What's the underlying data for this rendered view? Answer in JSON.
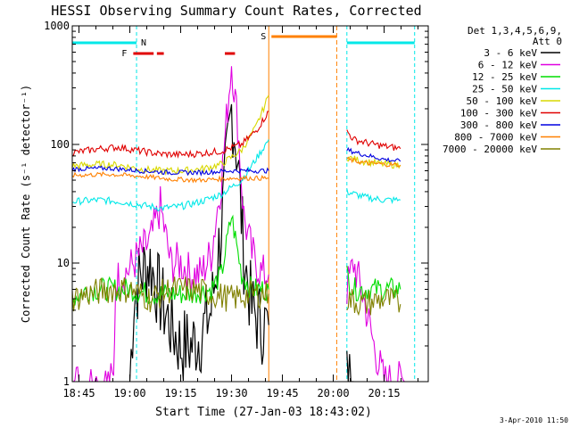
{
  "chart_data": {
    "type": "line",
    "title": "HESSI Observing Summary Count Rates, Corrected",
    "xlabel": "Start Time (27-Jan-03 18:43:02)",
    "ylabel": "Corrected Count Rate (s⁻¹ detector⁻¹)",
    "timestamp": "3-Apr-2010 11:50",
    "yscale": "log",
    "ylim": [
      1,
      1000
    ],
    "xlim_minutes": [
      18.717,
      20.467
    ],
    "xlim": [
      "18:43",
      "20:28"
    ],
    "yticks": [
      1,
      10,
      100,
      1000
    ],
    "ytick_labels": [
      "1",
      "10",
      "100",
      "1000"
    ],
    "xticks": [
      18.75,
      19.0,
      19.25,
      19.5,
      19.75,
      20.0,
      20.25
    ],
    "xtick_labels": [
      "18:45",
      "19:00",
      "19:15",
      "19:30",
      "19:45",
      "20:00",
      "20:15"
    ],
    "legend": {
      "placement": "right",
      "header": [
        "Det 1,3,4,5,6,9,",
        "Att 0"
      ],
      "items": [
        {
          "label": "3 - 6 keV",
          "color": "#000000"
        },
        {
          "label": "6 - 12 keV",
          "color": "#e000e0"
        },
        {
          "label": "12 - 25 keV",
          "color": "#00dd00"
        },
        {
          "label": "25 - 50 keV",
          "color": "#00e8e8"
        },
        {
          "label": "50 - 100 keV",
          "color": "#d8d800"
        },
        {
          "label": "100 - 300 keV",
          "color": "#e00000"
        },
        {
          "label": "300 - 800 keV",
          "color": "#0000e0"
        },
        {
          "label": "800 - 7000 keV",
          "color": "#ff8000"
        },
        {
          "label": "7000 - 20000 keV",
          "color": "#808000"
        }
      ]
    },
    "annotations": {
      "N": "N",
      "F": "F",
      "S": "S"
    },
    "flags": {
      "night": [
        {
          "start": 18.717,
          "end": 19.033
        },
        {
          "start": 20.067,
          "end": 20.4
        }
      ],
      "saa": {
        "start": 19.683,
        "end": 20.017
      },
      "flare": [
        {
          "start": 19.017,
          "end": 19.117
        },
        {
          "start": 19.133,
          "end": 19.167
        },
        {
          "start": 19.467,
          "end": 19.517
        }
      ]
    },
    "series": [
      {
        "name": "3 - 6 keV",
        "color": "#000000",
        "segments": [
          [
            [
              19.0,
              1.0
            ],
            [
              19.02,
              5.0
            ],
            [
              19.05,
              8.0
            ],
            [
              19.1,
              10.0
            ],
            [
              19.15,
              5.0
            ],
            [
              19.2,
              3.0
            ],
            [
              19.25,
              2.0
            ],
            [
              19.3,
              2.0
            ],
            [
              19.35,
              2.5
            ],
            [
              19.4,
              4.0
            ],
            [
              19.45,
              20.0
            ],
            [
              19.5,
              200.0
            ],
            [
              19.53,
              80.0
            ],
            [
              19.56,
              12.0
            ],
            [
              19.6,
              4.0
            ],
            [
              19.65,
              3.0
            ],
            [
              19.683,
              3.0
            ]
          ],
          [
            [
              20.067,
              1.0
            ],
            [
              20.1,
              1.0
            ]
          ]
        ]
      },
      {
        "name": "6 - 12 keV",
        "color": "#e000e0",
        "segments": [
          [
            [
              18.717,
              1.0
            ],
            [
              18.92,
              1.0
            ],
            [
              18.93,
              7.0
            ],
            [
              19.0,
              9.0
            ],
            [
              19.05,
              12.0
            ],
            [
              19.1,
              15.0
            ],
            [
              19.15,
              30.0
            ],
            [
              19.2,
              10.0
            ],
            [
              19.25,
              10.0
            ],
            [
              19.3,
              8.0
            ],
            [
              19.35,
              8.0
            ],
            [
              19.4,
              12.0
            ],
            [
              19.45,
              50.0
            ],
            [
              19.5,
              500.0
            ],
            [
              19.53,
              150.0
            ],
            [
              19.56,
              25.0
            ],
            [
              19.6,
              12.0
            ],
            [
              19.65,
              8.0
            ],
            [
              19.683,
              8.0
            ]
          ],
          [
            [
              20.067,
              6.0
            ],
            [
              20.1,
              10.0
            ],
            [
              20.15,
              5.0
            ],
            [
              20.2,
              2.0
            ],
            [
              20.25,
              1.0
            ],
            [
              20.35,
              1.0
            ]
          ]
        ]
      },
      {
        "name": "12 - 25 keV",
        "color": "#00dd00",
        "segments": [
          [
            [
              18.717,
              5.0
            ],
            [
              18.8,
              6.0
            ],
            [
              18.9,
              6.0
            ],
            [
              19.0,
              6.0
            ],
            [
              19.1,
              5.5
            ],
            [
              19.2,
              5.5
            ],
            [
              19.3,
              5.5
            ],
            [
              19.4,
              6.0
            ],
            [
              19.45,
              8.0
            ],
            [
              19.5,
              25.0
            ],
            [
              19.55,
              8.0
            ],
            [
              19.6,
              6.0
            ],
            [
              19.683,
              6.0
            ]
          ],
          [
            [
              20.067,
              8.0
            ],
            [
              20.1,
              6.0
            ],
            [
              20.2,
              6.0
            ],
            [
              20.33,
              6.0
            ]
          ]
        ]
      },
      {
        "name": "25 - 50 keV",
        "color": "#00e8e8",
        "segments": [
          [
            [
              18.717,
              33.0
            ],
            [
              18.85,
              34.0
            ],
            [
              18.95,
              33.0
            ],
            [
              19.05,
              31.0
            ],
            [
              19.15,
              29.0
            ],
            [
              19.25,
              30.0
            ],
            [
              19.35,
              33.0
            ],
            [
              19.45,
              38.0
            ],
            [
              19.55,
              50.0
            ],
            [
              19.62,
              75.0
            ],
            [
              19.683,
              110.0
            ]
          ],
          [
            [
              20.067,
              40.0
            ],
            [
              20.15,
              36.0
            ],
            [
              20.25,
              34.0
            ],
            [
              20.33,
              34.0
            ]
          ]
        ]
      },
      {
        "name": "50 - 100 keV",
        "color": "#d8d800",
        "segments": [
          [
            [
              18.717,
              66.0
            ],
            [
              18.85,
              68.0
            ],
            [
              18.95,
              67.0
            ],
            [
              19.05,
              62.0
            ],
            [
              19.15,
              60.0
            ],
            [
              19.25,
              60.0
            ],
            [
              19.35,
              62.0
            ],
            [
              19.45,
              68.0
            ],
            [
              19.55,
              90.0
            ],
            [
              19.62,
              140.0
            ],
            [
              19.683,
              260.0
            ]
          ],
          [
            [
              20.067,
              78.0
            ],
            [
              20.15,
              72.0
            ],
            [
              20.25,
              68.0
            ],
            [
              20.33,
              67.0
            ]
          ]
        ]
      },
      {
        "name": "100 - 300 keV",
        "color": "#e00000",
        "segments": [
          [
            [
              18.717,
              85.0
            ],
            [
              18.85,
              92.0
            ],
            [
              18.95,
              95.0
            ],
            [
              19.05,
              88.0
            ],
            [
              19.15,
              83.0
            ],
            [
              19.25,
              82.0
            ],
            [
              19.35,
              84.0
            ],
            [
              19.45,
              88.0
            ],
            [
              19.55,
              100.0
            ],
            [
              19.62,
              130.0
            ],
            [
              19.683,
              190.0
            ]
          ],
          [
            [
              20.067,
              130.0
            ],
            [
              20.1,
              110.0
            ],
            [
              20.2,
              100.0
            ],
            [
              20.33,
              92.0
            ]
          ]
        ]
      },
      {
        "name": "300 - 800 keV",
        "color": "#0000e0",
        "segments": [
          [
            [
              18.717,
              62.0
            ],
            [
              18.9,
              63.0
            ],
            [
              19.05,
              60.0
            ],
            [
              19.2,
              58.0
            ],
            [
              19.35,
              58.0
            ],
            [
              19.5,
              60.0
            ],
            [
              19.683,
              60.0
            ]
          ],
          [
            [
              20.067,
              90.0
            ],
            [
              20.15,
              82.0
            ],
            [
              20.25,
              75.0
            ],
            [
              20.33,
              72.0
            ]
          ]
        ]
      },
      {
        "name": "800 - 7000 keV",
        "color": "#ff8000",
        "segments": [
          [
            [
              18.717,
              55.0
            ],
            [
              18.9,
              56.0
            ],
            [
              19.05,
              54.0
            ],
            [
              19.2,
              51.0
            ],
            [
              19.35,
              50.0
            ],
            [
              19.5,
              52.0
            ],
            [
              19.683,
              52.0
            ]
          ],
          [
            [
              20.067,
              75.0
            ],
            [
              20.15,
              70.0
            ],
            [
              20.25,
              68.0
            ],
            [
              20.33,
              67.0
            ]
          ]
        ]
      },
      {
        "name": "7000 - 20000 keV",
        "color": "#808000",
        "segments": [
          [
            [
              18.717,
              5.0
            ],
            [
              18.8,
              5.5
            ],
            [
              18.9,
              6.0
            ],
            [
              19.0,
              6.0
            ],
            [
              19.1,
              5.0
            ],
            [
              19.2,
              6.0
            ],
            [
              19.3,
              6.0
            ],
            [
              19.4,
              5.5
            ],
            [
              19.5,
              5.0
            ],
            [
              19.6,
              5.5
            ],
            [
              19.683,
              5.5
            ]
          ],
          [
            [
              20.067,
              5.0
            ],
            [
              20.15,
              4.5
            ],
            [
              20.25,
              5.0
            ],
            [
              20.33,
              4.5
            ]
          ]
        ]
      }
    ]
  }
}
